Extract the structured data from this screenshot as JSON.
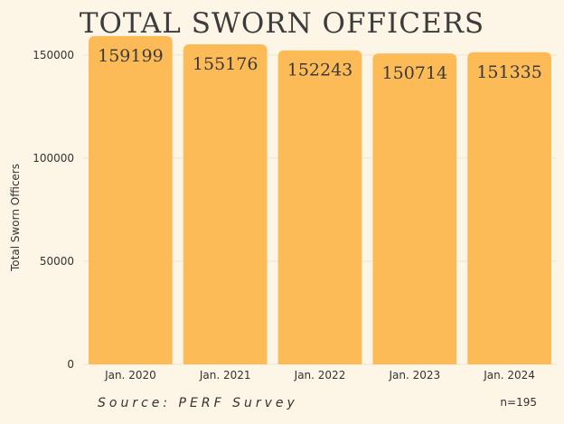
{
  "chart_data": {
    "type": "bar",
    "title": "TOTAL SWORN OFFICERS",
    "xlabel": "",
    "ylabel": "Total Sworn Officers",
    "categories": [
      "Jan. 2020",
      "Jan. 2021",
      "Jan. 2022",
      "Jan. 2023",
      "Jan. 2024"
    ],
    "values": [
      159199,
      155176,
      152243,
      150714,
      151335
    ],
    "data_labels": [
      "159199",
      "155176",
      "152243",
      "150714",
      "151335"
    ],
    "ylim": [
      0,
      160000
    ],
    "yticks": [
      0,
      50000,
      100000,
      150000
    ],
    "ytick_labels": [
      "0",
      "50000",
      "100000",
      "150000"
    ],
    "grid": true,
    "bar_color": "#fdbb58",
    "grid_color": "#eee4d3"
  },
  "footer": {
    "source": "Source: PERF Survey",
    "n": "n=195"
  }
}
